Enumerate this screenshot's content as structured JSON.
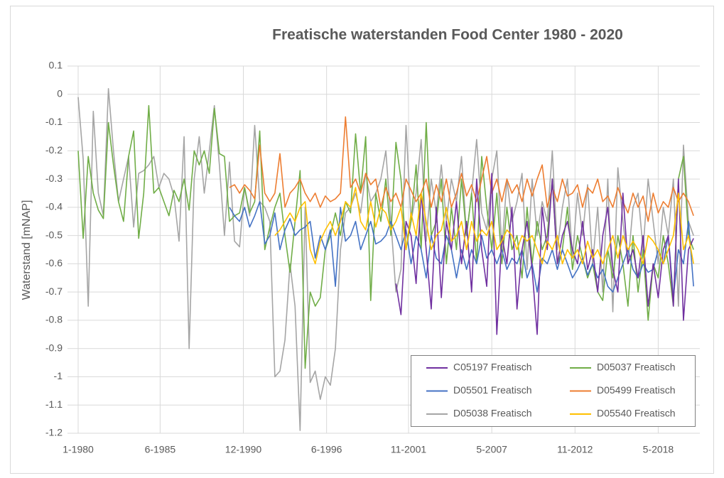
{
  "chart_data": {
    "type": "line",
    "title": "Freatische waterstanden Food Center 1980 - 2020",
    "y_label": "Waterstand [mNAP]",
    "x": [
      "1980-01",
      "1980-05",
      "1980-09",
      "1981-01",
      "1981-05",
      "1981-09",
      "1982-01",
      "1982-05",
      "1982-09",
      "1983-01",
      "1983-05",
      "1983-09",
      "1984-01",
      "1984-05",
      "1984-09",
      "1985-01",
      "1985-05",
      "1985-09",
      "1986-01",
      "1986-05",
      "1986-09",
      "1987-01",
      "1987-05",
      "1987-09",
      "1988-01",
      "1988-05",
      "1988-09",
      "1989-01",
      "1989-05",
      "1989-09",
      "1990-01",
      "1990-05",
      "1990-09",
      "1991-01",
      "1991-05",
      "1991-09",
      "1992-01",
      "1992-05",
      "1992-09",
      "1993-01",
      "1993-05",
      "1993-09",
      "1994-01",
      "1994-05",
      "1994-09",
      "1995-01",
      "1995-05",
      "1995-09",
      "1996-01",
      "1996-05",
      "1996-09",
      "1997-01",
      "1997-05",
      "1997-09",
      "1998-01",
      "1998-05",
      "1998-09",
      "1999-01",
      "1999-05",
      "1999-09",
      "2000-01",
      "2000-05",
      "2000-09",
      "2001-01",
      "2001-05",
      "2001-09",
      "2002-01",
      "2002-05",
      "2002-09",
      "2003-01",
      "2003-05",
      "2003-09",
      "2004-01",
      "2004-05",
      "2004-09",
      "2005-01",
      "2005-05",
      "2005-09",
      "2006-01",
      "2006-05",
      "2006-09",
      "2007-01",
      "2007-05",
      "2007-09",
      "2008-01",
      "2008-05",
      "2008-09",
      "2009-01",
      "2009-05",
      "2009-09",
      "2010-01",
      "2010-05",
      "2010-09",
      "2011-01",
      "2011-05",
      "2011-09",
      "2012-01",
      "2012-05",
      "2012-09",
      "2013-01",
      "2013-05",
      "2013-09",
      "2014-01",
      "2014-05",
      "2014-09",
      "2015-01",
      "2015-05",
      "2015-09",
      "2016-01",
      "2016-05",
      "2016-09",
      "2017-01",
      "2017-05",
      "2017-09",
      "2018-01",
      "2018-05",
      "2018-09",
      "2019-01",
      "2019-05",
      "2019-09",
      "2020-01",
      "2020-05",
      "2020-09"
    ],
    "series": [
      {
        "name": "C05197 Freatisch",
        "color": "#7030a0",
        "values": [
          null,
          null,
          null,
          null,
          null,
          null,
          null,
          null,
          null,
          null,
          null,
          null,
          null,
          null,
          null,
          null,
          null,
          null,
          null,
          null,
          null,
          null,
          null,
          null,
          null,
          null,
          null,
          null,
          null,
          null,
          null,
          null,
          null,
          null,
          null,
          null,
          null,
          null,
          null,
          null,
          null,
          null,
          null,
          null,
          null,
          null,
          null,
          null,
          null,
          null,
          null,
          null,
          null,
          null,
          null,
          null,
          null,
          null,
          null,
          null,
          null,
          null,
          null,
          -0.67,
          -0.78,
          -0.45,
          -0.5,
          -0.67,
          -0.35,
          -0.55,
          -0.76,
          -0.4,
          -0.72,
          -0.45,
          -0.55,
          -0.38,
          -0.6,
          -0.45,
          -0.7,
          -0.3,
          -0.55,
          -0.68,
          -0.28,
          -0.85,
          -0.5,
          -0.6,
          -0.4,
          -0.76,
          -0.55,
          -0.45,
          -0.62,
          -0.85,
          -0.4,
          -0.55,
          -0.3,
          -0.6,
          -0.5,
          -0.45,
          -0.55,
          -0.6,
          -0.45,
          -0.62,
          -0.55,
          -0.7,
          -0.5,
          -0.4,
          -0.62,
          -0.7,
          -0.35,
          -0.6,
          -0.55,
          -0.65,
          -0.5,
          -0.75,
          -0.6,
          -0.72,
          -0.55,
          -0.5,
          -0.75,
          -0.3,
          -0.8,
          -0.55,
          -0.51
        ]
      },
      {
        "name": "D05037 Freatisch",
        "color": "#70ad47",
        "values": [
          -0.2,
          -0.51,
          -0.22,
          -0.35,
          -0.41,
          -0.44,
          -0.1,
          -0.25,
          -0.38,
          -0.45,
          -0.22,
          -0.13,
          -0.51,
          -0.35,
          -0.04,
          -0.35,
          -0.33,
          -0.38,
          -0.43,
          -0.34,
          -0.38,
          -0.3,
          -0.41,
          -0.2,
          -0.25,
          -0.2,
          -0.28,
          -0.05,
          -0.21,
          -0.22,
          -0.45,
          -0.43,
          -0.42,
          -0.33,
          -0.42,
          -0.38,
          -0.13,
          -0.55,
          -0.47,
          -0.4,
          -0.35,
          -0.5,
          -0.63,
          -0.45,
          -0.27,
          -0.97,
          -0.7,
          -0.75,
          -0.72,
          -0.55,
          -0.5,
          -0.42,
          -0.5,
          -0.38,
          -0.42,
          -0.14,
          -0.35,
          -0.15,
          -0.73,
          -0.35,
          -0.45,
          -0.3,
          -0.5,
          -0.17,
          -0.3,
          -0.55,
          -0.45,
          -0.25,
          -0.55,
          -0.1,
          -0.5,
          -0.45,
          -0.3,
          -0.6,
          -0.4,
          -0.55,
          -0.3,
          -0.5,
          -0.35,
          -0.6,
          -0.22,
          -0.4,
          -0.55,
          -0.35,
          -0.6,
          -0.4,
          -0.55,
          -0.5,
          -0.65,
          -0.4,
          -0.6,
          -0.45,
          -0.55,
          -0.5,
          -0.3,
          -0.6,
          -0.55,
          -0.4,
          -0.62,
          -0.5,
          -0.58,
          -0.65,
          -0.6,
          -0.7,
          -0.73,
          -0.55,
          -0.65,
          -0.5,
          -0.6,
          -0.75,
          -0.5,
          -0.7,
          -0.55,
          -0.8,
          -0.6,
          -0.65,
          -0.5,
          -0.6,
          -0.75,
          -0.3,
          -0.22,
          -0.5,
          -0.55
        ]
      },
      {
        "name": "D05501 Freatisch",
        "color": "#4472c4",
        "values": [
          null,
          null,
          null,
          null,
          null,
          null,
          null,
          null,
          null,
          null,
          null,
          null,
          null,
          null,
          null,
          null,
          null,
          null,
          null,
          null,
          null,
          null,
          null,
          null,
          null,
          null,
          null,
          null,
          null,
          null,
          -0.4,
          -0.43,
          -0.45,
          -0.4,
          -0.47,
          -0.43,
          -0.38,
          -0.53,
          -0.5,
          -0.42,
          -0.55,
          -0.48,
          -0.44,
          -0.5,
          -0.48,
          -0.47,
          -0.45,
          -0.58,
          -0.5,
          -0.55,
          -0.48,
          -0.68,
          -0.4,
          -0.52,
          -0.5,
          -0.45,
          -0.55,
          -0.5,
          -0.45,
          -0.53,
          -0.52,
          -0.5,
          -0.45,
          -0.5,
          -0.55,
          -0.48,
          -0.6,
          -0.5,
          -0.55,
          -0.65,
          -0.5,
          -0.58,
          -0.6,
          -0.5,
          -0.55,
          -0.65,
          -0.55,
          -0.62,
          -0.55,
          -0.6,
          -0.5,
          -0.58,
          -0.55,
          -0.6,
          -0.55,
          -0.62,
          -0.58,
          -0.6,
          -0.55,
          -0.65,
          -0.6,
          -0.7,
          -0.58,
          -0.6,
          -0.55,
          -0.62,
          -0.55,
          -0.6,
          -0.65,
          -0.62,
          -0.58,
          -0.64,
          -0.6,
          -0.65,
          -0.62,
          -0.68,
          -0.7,
          -0.65,
          -0.6,
          -0.55,
          -0.62,
          -0.65,
          -0.6,
          -0.63,
          -0.62,
          -0.55,
          -0.6,
          -0.5,
          -0.72,
          -0.55,
          -0.6,
          -0.45,
          -0.68
        ]
      },
      {
        "name": "D05499 Freatisch",
        "color": "#ed7d31",
        "values": [
          null,
          null,
          null,
          null,
          null,
          null,
          null,
          null,
          null,
          null,
          null,
          null,
          null,
          null,
          null,
          null,
          null,
          null,
          null,
          null,
          null,
          null,
          null,
          null,
          null,
          null,
          null,
          null,
          null,
          null,
          -0.33,
          -0.32,
          -0.35,
          -0.32,
          -0.34,
          -0.37,
          -0.18,
          -0.35,
          -0.38,
          -0.35,
          -0.21,
          -0.4,
          -0.35,
          -0.33,
          -0.3,
          -0.35,
          -0.38,
          -0.35,
          -0.4,
          -0.36,
          -0.38,
          -0.37,
          -0.35,
          -0.08,
          -0.33,
          -0.3,
          -0.35,
          -0.28,
          -0.32,
          -0.3,
          -0.4,
          -0.33,
          -0.38,
          -0.35,
          -0.4,
          -0.3,
          -0.34,
          -0.38,
          -0.35,
          -0.3,
          -0.4,
          -0.32,
          -0.38,
          -0.3,
          -0.4,
          -0.35,
          -0.28,
          -0.36,
          -0.32,
          -0.38,
          -0.3,
          -0.22,
          -0.35,
          -0.3,
          -0.38,
          -0.3,
          -0.35,
          -0.32,
          -0.38,
          -0.3,
          -0.36,
          -0.3,
          -0.25,
          -0.4,
          -0.33,
          -0.38,
          -0.3,
          -0.36,
          -0.35,
          -0.32,
          -0.4,
          -0.33,
          -0.35,
          -0.3,
          -0.38,
          -0.36,
          -0.4,
          -0.33,
          -0.38,
          -0.42,
          -0.35,
          -0.4,
          -0.36,
          -0.45,
          -0.35,
          -0.42,
          -0.38,
          -0.4,
          -0.33,
          -0.38,
          -0.35,
          -0.38,
          -0.43
        ]
      },
      {
        "name": "D05038 Freatisch",
        "color": "#a5a5a5",
        "values": [
          -0.01,
          -0.23,
          -0.75,
          -0.06,
          -0.35,
          -0.43,
          0.02,
          -0.2,
          -0.38,
          -0.3,
          -0.22,
          -0.47,
          -0.28,
          -0.27,
          -0.25,
          -0.22,
          -0.33,
          -0.28,
          -0.3,
          -0.36,
          -0.52,
          -0.15,
          -0.9,
          -0.3,
          -0.15,
          -0.35,
          -0.2,
          -0.04,
          -0.25,
          -0.5,
          -0.24,
          -0.52,
          -0.54,
          -0.33,
          -0.43,
          -0.11,
          -0.38,
          -0.4,
          -0.45,
          -1.0,
          -0.98,
          -0.87,
          -0.6,
          -0.75,
          -1.19,
          -0.4,
          -1.02,
          -0.98,
          -1.08,
          -1.0,
          -1.03,
          -0.9,
          -0.55,
          -0.42,
          -0.4,
          -0.35,
          -0.42,
          -0.28,
          -0.38,
          -0.35,
          -0.3,
          -0.2,
          -0.45,
          -0.7,
          -0.62,
          -0.11,
          -0.45,
          -0.35,
          -0.16,
          -0.52,
          -0.3,
          -0.42,
          -0.25,
          -0.45,
          -0.3,
          -0.38,
          -0.22,
          -0.5,
          -0.35,
          -0.16,
          -0.42,
          -0.48,
          -0.3,
          -0.2,
          -0.55,
          -0.3,
          -0.45,
          -0.38,
          -0.28,
          -0.62,
          -0.3,
          -0.5,
          -0.38,
          -0.45,
          -0.2,
          -0.55,
          -0.4,
          -0.3,
          -0.58,
          -0.35,
          -0.5,
          -0.32,
          -0.6,
          -0.4,
          -0.7,
          -0.3,
          -0.77,
          -0.26,
          -0.45,
          -0.6,
          -0.4,
          -0.35,
          -0.55,
          -0.3,
          -0.45,
          -0.6,
          -0.4,
          -0.5,
          -0.3,
          -0.75,
          -0.18,
          -0.45,
          -0.5
        ]
      },
      {
        "name": "D05540 Freatisch",
        "color": "#ffc000",
        "values": [
          null,
          null,
          null,
          null,
          null,
          null,
          null,
          null,
          null,
          null,
          null,
          null,
          null,
          null,
          null,
          null,
          null,
          null,
          null,
          null,
          null,
          null,
          null,
          null,
          null,
          null,
          null,
          null,
          null,
          null,
          null,
          null,
          null,
          null,
          null,
          null,
          null,
          null,
          null,
          -0.5,
          -0.48,
          -0.45,
          -0.42,
          -0.45,
          -0.4,
          -0.38,
          -0.55,
          -0.6,
          -0.52,
          -0.48,
          -0.45,
          -0.5,
          -0.45,
          -0.38,
          -0.4,
          -0.33,
          -0.45,
          -0.48,
          -0.38,
          -0.47,
          -0.4,
          -0.42,
          -0.48,
          -0.45,
          -0.4,
          -0.55,
          -0.42,
          -0.5,
          -0.35,
          -0.45,
          -0.55,
          -0.5,
          -0.48,
          -0.4,
          -0.52,
          -0.5,
          -0.45,
          -0.55,
          -0.45,
          -0.52,
          -0.48,
          -0.5,
          -0.45,
          -0.55,
          -0.52,
          -0.48,
          -0.5,
          -0.55,
          -0.5,
          -0.52,
          -0.5,
          -0.55,
          -0.6,
          -0.52,
          -0.55,
          -0.5,
          -0.6,
          -0.55,
          -0.58,
          -0.55,
          -0.6,
          -0.52,
          -0.58,
          -0.55,
          -0.6,
          -0.55,
          -0.5,
          -0.58,
          -0.5,
          -0.55,
          -0.52,
          -0.55,
          -0.6,
          -0.5,
          -0.52,
          -0.55,
          -0.6,
          -0.55,
          -0.5,
          -0.35,
          -0.55,
          -0.5,
          -0.6
        ]
      }
    ],
    "xlim": [
      "1980-01",
      "2021-02"
    ],
    "xticks": [
      {
        "value": "1980-01",
        "label": "1-1980"
      },
      {
        "value": "1985-06",
        "label": "6-1985"
      },
      {
        "value": "1990-12",
        "label": "12-1990"
      },
      {
        "value": "1996-06",
        "label": "6-1996"
      },
      {
        "value": "2001-11",
        "label": "11-2001"
      },
      {
        "value": "2007-05",
        "label": "5-2007"
      },
      {
        "value": "2012-11",
        "label": "11-2012"
      },
      {
        "value": "2018-05",
        "label": "5-2018"
      }
    ],
    "ylim": [
      -1.2,
      0.1
    ],
    "yticks": [
      0.1,
      0,
      -0.1,
      -0.2,
      -0.3,
      -0.4,
      -0.5,
      -0.6,
      -0.7,
      -0.8,
      -0.9,
      -1,
      -1.1,
      -1.2
    ],
    "grid": true,
    "legend_position": "lower right"
  }
}
